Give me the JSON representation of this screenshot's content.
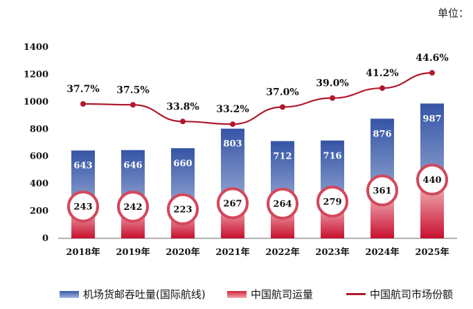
{
  "unit_label": "单位：",
  "chart_data": {
    "type": "bar",
    "categories": [
      "2018年",
      "2019年",
      "2020年",
      "2021年",
      "2022年",
      "2023年",
      "2024年",
      "2025年"
    ],
    "ylim": [
      0,
      1400
    ],
    "yticks": [
      0,
      200,
      400,
      600,
      800,
      1000,
      1200,
      1400
    ],
    "series": [
      {
        "name": "机场货邮吞吐量(国际航线)",
        "type": "bar",
        "color": "#3a5aa8",
        "values": [
          643,
          646,
          660,
          803,
          712,
          716,
          876,
          987
        ]
      },
      {
        "name": "中国航司运量",
        "type": "bar",
        "color": "#d0243a",
        "values": [
          243,
          242,
          223,
          267,
          264,
          279,
          361,
          440
        ]
      },
      {
        "name": "中国航司市场份额",
        "type": "line",
        "color": "#b0182c",
        "values": [
          37.7,
          37.5,
          33.8,
          33.2,
          37.0,
          39.0,
          41.2,
          44.6
        ],
        "labels": [
          "37.7%",
          "37.5%",
          "33.8%",
          "33.2%",
          "37.0%",
          "39.0%",
          "41.2%",
          "44.6%"
        ]
      }
    ],
    "grid": false,
    "legend": "bottom"
  }
}
